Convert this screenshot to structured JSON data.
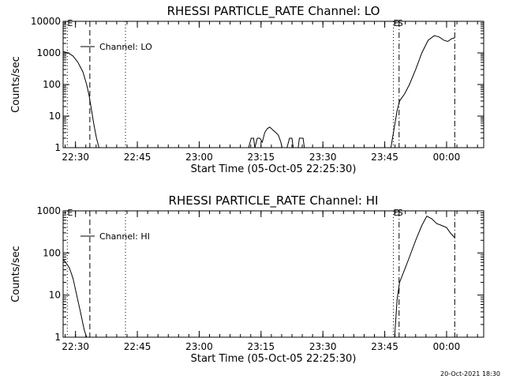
{
  "footer_timestamp": "20-Oct-2021 18:30",
  "chart_data": [
    {
      "type": "line",
      "title": "RHESSI PARTICLE_RATE Channel: LO",
      "xlabel": "Start Time (05-Oct-05 22:25:30)",
      "ylabel": "Counts/sec",
      "legend": "Channel: LO",
      "legend_position": "top-left",
      "y_scale": "log",
      "xlim": [
        22.45,
        24.15
      ],
      "ylim": [
        1,
        10000
      ],
      "x_ticks": [
        22.5,
        22.75,
        23.0,
        23.25,
        23.5,
        23.75,
        24.0
      ],
      "x_tick_labels": [
        "22:30",
        "22:45",
        "23:00",
        "23:15",
        "23:30",
        "23:45",
        "00:00"
      ],
      "y_ticks": [
        1,
        10,
        100,
        1000,
        10000
      ],
      "y_tick_labels": [
        "1",
        "10",
        "100",
        "1000",
        "10000"
      ],
      "markers": [
        {
          "x": 22.467,
          "style": "dotted",
          "label": "E"
        },
        {
          "x": 22.558,
          "style": "dashed"
        },
        {
          "x": 22.702,
          "style": "dotted"
        },
        {
          "x": 23.785,
          "style": "dotted",
          "label": "E"
        },
        {
          "x": 23.808,
          "style": "dashdot",
          "label": "S"
        },
        {
          "x": 24.033,
          "style": "dashdot"
        }
      ],
      "series": [
        {
          "segments": [
            [
              [
                22.45,
                1100
              ],
              [
                22.47,
                1000
              ],
              [
                22.49,
                800
              ],
              [
                22.51,
                500
              ],
              [
                22.53,
                250
              ],
              [
                22.545,
                100
              ],
              [
                22.555,
                45
              ],
              [
                22.565,
                15
              ],
              [
                22.575,
                5
              ],
              [
                22.585,
                2
              ],
              [
                22.595,
                1
              ]
            ],
            [
              [
                23.2,
                1
              ],
              [
                23.21,
                2
              ],
              [
                23.22,
                2
              ],
              [
                23.225,
                1
              ],
              [
                23.235,
                2
              ],
              [
                23.245,
                2
              ],
              [
                23.255,
                1.5
              ],
              [
                23.265,
                3
              ],
              [
                23.275,
                4
              ],
              [
                23.285,
                4.5
              ],
              [
                23.3,
                3.5
              ],
              [
                23.31,
                3
              ],
              [
                23.32,
                2.5
              ],
              [
                23.33,
                1.5
              ],
              [
                23.335,
                1
              ]
            ],
            [
              [
                23.355,
                1
              ],
              [
                23.365,
                2
              ],
              [
                23.375,
                2
              ],
              [
                23.38,
                1
              ]
            ],
            [
              [
                23.4,
                1
              ],
              [
                23.405,
                2
              ],
              [
                23.42,
                2
              ],
              [
                23.425,
                1
              ]
            ],
            [
              [
                23.775,
                1
              ],
              [
                23.79,
                5
              ],
              [
                23.8,
                15
              ],
              [
                23.81,
                30
              ],
              [
                23.83,
                50
              ],
              [
                23.85,
                100
              ],
              [
                23.875,
                300
              ],
              [
                23.9,
                1000
              ],
              [
                23.925,
                2500
              ],
              [
                23.95,
                3500
              ],
              [
                23.97,
                3200
              ],
              [
                23.99,
                2500
              ],
              [
                24.005,
                2300
              ],
              [
                24.02,
                2800
              ],
              [
                24.033,
                3000
              ]
            ]
          ]
        }
      ]
    },
    {
      "type": "line",
      "title": "RHESSI PARTICLE_RATE Channel: HI",
      "xlabel": "Start Time (05-Oct-05 22:25:30)",
      "ylabel": "Counts/sec",
      "legend": "Channel: HI",
      "legend_position": "top-left",
      "y_scale": "log",
      "xlim": [
        22.45,
        24.15
      ],
      "ylim": [
        1,
        1000
      ],
      "x_ticks": [
        22.5,
        22.75,
        23.0,
        23.25,
        23.5,
        23.75,
        24.0
      ],
      "x_tick_labels": [
        "22:30",
        "22:45",
        "23:00",
        "23:15",
        "23:30",
        "23:45",
        "00:00"
      ],
      "y_ticks": [
        1,
        10,
        100,
        1000
      ],
      "y_tick_labels": [
        "1",
        "10",
        "100",
        "1000"
      ],
      "markers": [
        {
          "x": 22.467,
          "style": "dotted",
          "label": "E"
        },
        {
          "x": 22.558,
          "style": "dashed"
        },
        {
          "x": 22.702,
          "style": "dotted"
        },
        {
          "x": 23.785,
          "style": "dotted",
          "label": "E"
        },
        {
          "x": 23.808,
          "style": "dashdot",
          "label": "S"
        },
        {
          "x": 24.033,
          "style": "dashdot"
        }
      ],
      "series": [
        {
          "segments": [
            [
              [
                22.45,
                70
              ],
              [
                22.46,
                60
              ],
              [
                22.475,
                45
              ],
              [
                22.49,
                25
              ],
              [
                22.505,
                10
              ],
              [
                22.52,
                4
              ],
              [
                22.535,
                1.5
              ],
              [
                22.545,
                1
              ]
            ],
            [
              [
                23.79,
                1
              ],
              [
                23.8,
                8
              ],
              [
                23.81,
                20
              ],
              [
                23.83,
                40
              ],
              [
                23.85,
                80
              ],
              [
                23.875,
                200
              ],
              [
                23.9,
                450
              ],
              [
                23.92,
                750
              ],
              [
                23.94,
                650
              ],
              [
                23.96,
                500
              ],
              [
                23.98,
                450
              ],
              [
                24.0,
                400
              ],
              [
                24.015,
                300
              ],
              [
                24.033,
                230
              ]
            ]
          ]
        }
      ]
    }
  ]
}
